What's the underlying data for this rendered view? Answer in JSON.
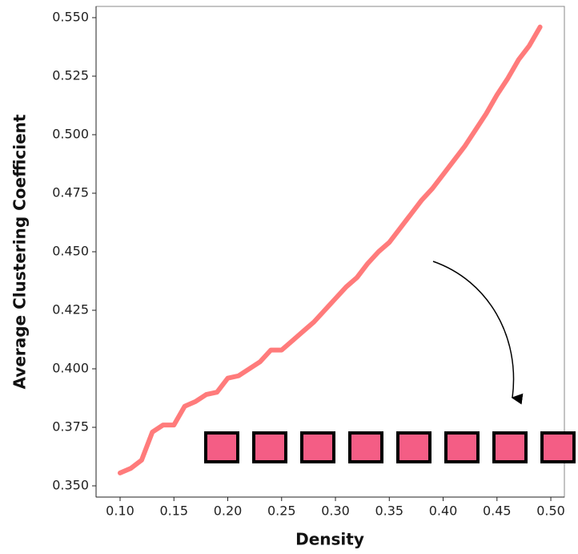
{
  "chart_data": {
    "type": "line",
    "xlabel": "Density",
    "ylabel": "Average Clustering Coefficient",
    "x": [
      0.1,
      0.11,
      0.12,
      0.13,
      0.14,
      0.15,
      0.16,
      0.17,
      0.18,
      0.19,
      0.2,
      0.21,
      0.22,
      0.23,
      0.24,
      0.25,
      0.26,
      0.27,
      0.28,
      0.29,
      0.3,
      0.31,
      0.32,
      0.33,
      0.34,
      0.35,
      0.36,
      0.37,
      0.38,
      0.39,
      0.4,
      0.41,
      0.42,
      0.43,
      0.44,
      0.45,
      0.46,
      0.47,
      0.48,
      0.49
    ],
    "series": [
      {
        "color": "#ff7b7b",
        "values": [
          0.3555,
          0.3575,
          0.361,
          0.373,
          0.376,
          0.376,
          0.384,
          0.386,
          0.389,
          0.39,
          0.396,
          0.397,
          0.4,
          0.403,
          0.408,
          0.408,
          0.412,
          0.416,
          0.42,
          0.425,
          0.43,
          0.435,
          0.439,
          0.445,
          0.45,
          0.454,
          0.46,
          0.466,
          0.472,
          0.477,
          0.483,
          0.489,
          0.495,
          0.502,
          0.509,
          0.517,
          0.524,
          0.532,
          0.538,
          0.546
        ]
      }
    ],
    "xlim": [
      0.0777,
      0.5126
    ],
    "ylim": [
      0.3452,
      0.5548
    ],
    "xticks": [
      {
        "value": 0.1,
        "label": "0.10"
      },
      {
        "value": 0.15,
        "label": "0.15"
      },
      {
        "value": 0.2,
        "label": "0.20"
      },
      {
        "value": 0.25,
        "label": "0.25"
      },
      {
        "value": 0.3,
        "label": "0.30"
      },
      {
        "value": 0.35,
        "label": "0.35"
      },
      {
        "value": 0.4,
        "label": "0.40"
      },
      {
        "value": 0.45,
        "label": "0.45"
      },
      {
        "value": 0.5,
        "label": "0.50"
      }
    ],
    "yticks": [
      {
        "value": 0.35,
        "label": "0.350"
      },
      {
        "value": 0.375,
        "label": "0.375"
      },
      {
        "value": 0.4,
        "label": "0.400"
      },
      {
        "value": 0.425,
        "label": "0.425"
      },
      {
        "value": 0.45,
        "label": "0.450"
      },
      {
        "value": 0.475,
        "label": "0.475"
      },
      {
        "value": 0.5,
        "label": "0.500"
      },
      {
        "value": 0.525,
        "label": "0.525"
      },
      {
        "value": 0.55,
        "label": "0.550"
      }
    ]
  }
}
